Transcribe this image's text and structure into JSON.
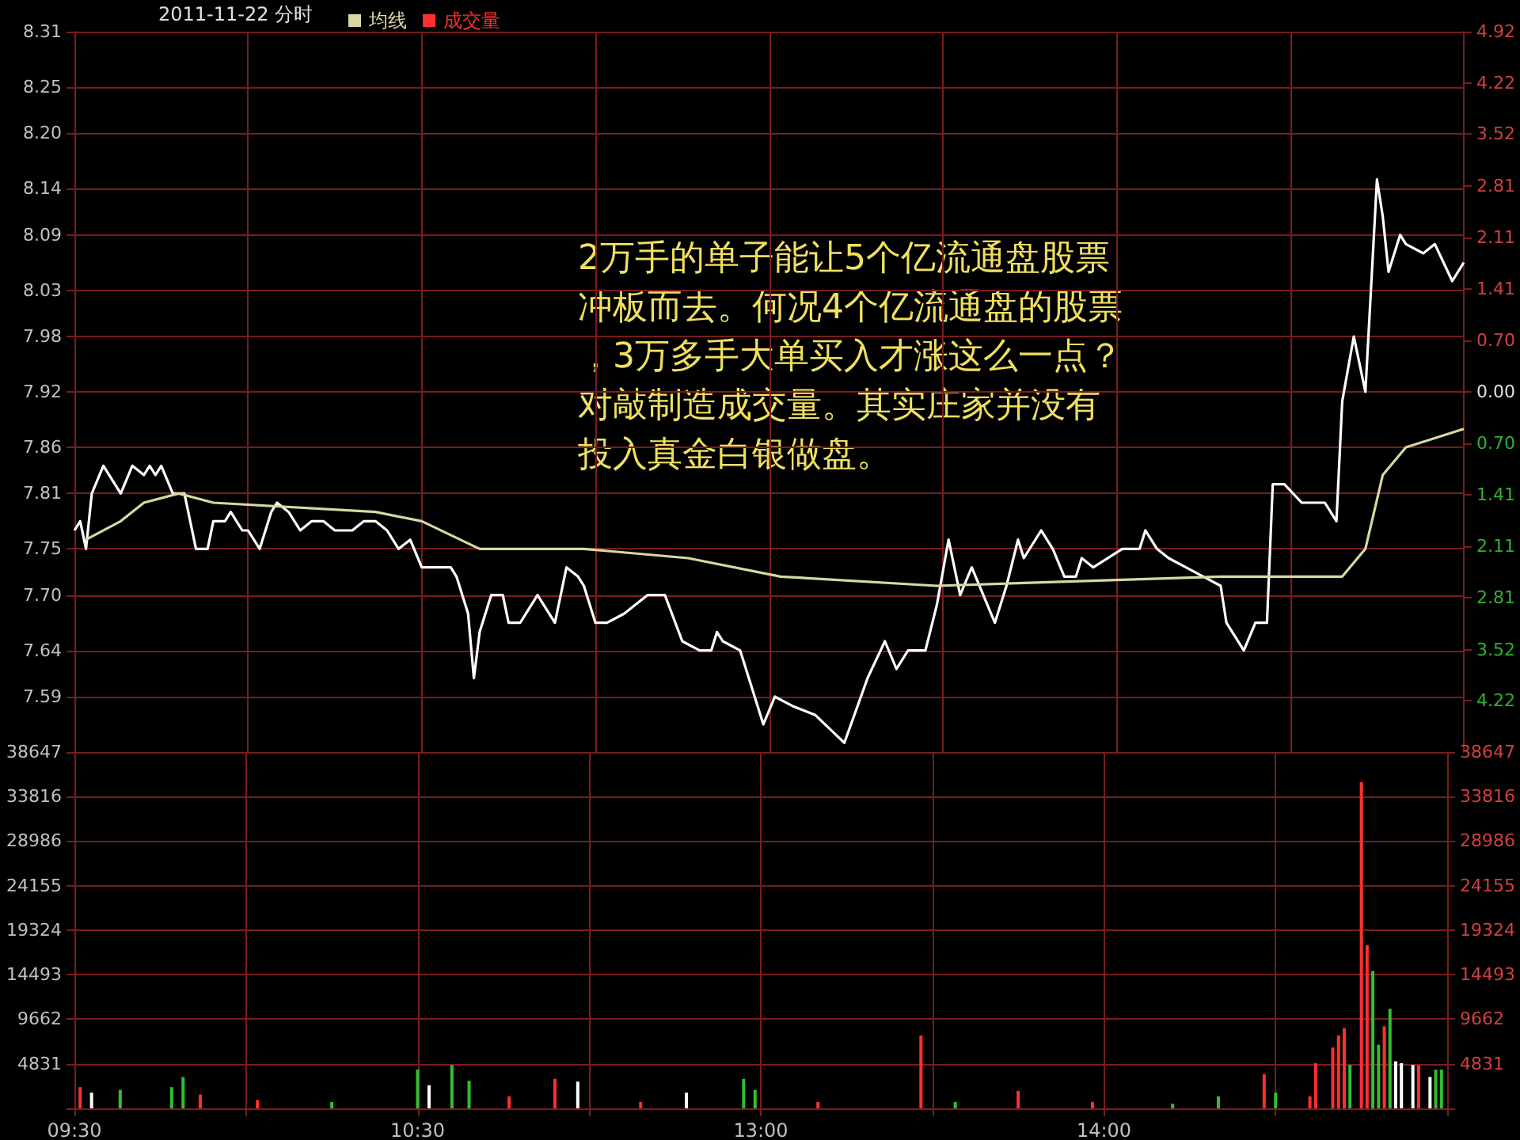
{
  "chart_data": [
    {
      "type": "line",
      "title": "2011-11-22 分时",
      "annotations": [
        "2万手的单子能让5个亿流通盘股票冲板而去。何况4个亿流通盘的股票，3万多手大单买入才涨这么一点？对敲制造成交量。其实庄家并没有投入真金白银做盘。"
      ],
      "categories": [
        null,
        null,
        null,
        null,
        null,
        null,
        null,
        null,
        null,
        null,
        null,
        null,
        null,
        null,
        null,
        null,
        null,
        null,
        null,
        null,
        null,
        null,
        null,
        null,
        null,
        null,
        null,
        null,
        null,
        null,
        null,
        null,
        null,
        null,
        null,
        null,
        null,
        null,
        null,
        null,
        null,
        null,
        null,
        null,
        null,
        null,
        null,
        null,
        null,
        null,
        null,
        null,
        null,
        null,
        null,
        null,
        null,
        null,
        null,
        null,
        null,
        null,
        null,
        null,
        null,
        null,
        null,
        null,
        null,
        null,
        null,
        null,
        null,
        null,
        null,
        null,
        null,
        null,
        null,
        null,
        null,
        null,
        null,
        null,
        null,
        null,
        null,
        null,
        null,
        null,
        null,
        null,
        null,
        null,
        null,
        null,
        null,
        null,
        null,
        null,
        null,
        null,
        null,
        null,
        null,
        null,
        null,
        null,
        null,
        null,
        null,
        null,
        null,
        null,
        null,
        null,
        null,
        null,
        null,
        null,
        null,
        null,
        null,
        null,
        null,
        null,
        null,
        null,
        null,
        null,
        null,
        null,
        null,
        null,
        null,
        null,
        null,
        null,
        null,
        null,
        null,
        null,
        null,
        null,
        null,
        null,
        null,
        null,
        null,
        null,
        null,
        null,
        null,
        null,
        null,
        null,
        null,
        null,
        null,
        null,
        null,
        null,
        null,
        null,
        null,
        null,
        null,
        null,
        null,
        null,
        null,
        null,
        null,
        null,
        null,
        null,
        null,
        null,
        null,
        null,
        null,
        null,
        null,
        null,
        null,
        null,
        null,
        null,
        null,
        null,
        null,
        null,
        null,
        null,
        null,
        null,
        null,
        null,
        null,
        null,
        null,
        null,
        null,
        null,
        null,
        null,
        null,
        null,
        null,
        null,
        null,
        null,
        null,
        null,
        null,
        null,
        null,
        null,
        null,
        null,
        null,
        null,
        null,
        null,
        null,
        null,
        null,
        null,
        null,
        null,
        null,
        null,
        null,
        null,
        null,
        null,
        null,
        null,
        null,
        null,
        null
      ],
      "series": [
        {
          "color": "#ffffff",
          "values": [
            7.77,
            7.78,
            7.75,
            7.81,
            null,
            7.84,
            null,
            null,
            7.81,
            null,
            7.84,
            null,
            7.83,
            7.84,
            7.83,
            7.84,
            null,
            7.81,
            null,
            7.81,
            null,
            7.75,
            null,
            7.75,
            7.78,
            null,
            7.78,
            7.79,
            null,
            7.77,
            7.77,
            null,
            7.75,
            null,
            7.79,
            7.8,
            null,
            7.79,
            null,
            7.77,
            null,
            7.78,
            null,
            7.78,
            null,
            7.77,
            null,
            null,
            7.77,
            null,
            7.78,
            null,
            7.78,
            null,
            7.77,
            null,
            7.75,
            null,
            7.76,
            null,
            7.73,
            null,
            7.73,
            null,
            null,
            7.73,
            7.72,
            null,
            7.68,
            7.61,
            7.66,
            null,
            7.7,
            null,
            7.7,
            7.67,
            null,
            7.67,
            null,
            7.69,
            7.7,
            null,
            null,
            7.67,
            null,
            7.73,
            null,
            7.72,
            7.71,
            null,
            7.67,
            null,
            7.67,
            null,
            null,
            7.68,
            null,
            7.69,
            null,
            7.7,
            null,
            7.7,
            7.7,
            null,
            null,
            7.65,
            null,
            null,
            7.64,
            null,
            7.64,
            7.66,
            7.65,
            null,
            null,
            7.64,
            null,
            7.6,
            null,
            7.56,
            null,
            7.59,
            null,
            null,
            7.58,
            null,
            null,
            null,
            7.57,
            null,
            null,
            null,
            null,
            7.54,
            null,
            null,
            null,
            7.61,
            null,
            null,
            7.65,
            null,
            7.62,
            null,
            7.64,
            null,
            null,
            7.64,
            null,
            7.69,
            null,
            7.76,
            null,
            7.7,
            null,
            7.73,
            null,
            null,
            null,
            7.67,
            null,
            7.71,
            null,
            7.76,
            7.74,
            null,
            null,
            7.77,
            null,
            7.75,
            null,
            7.72,
            null,
            7.72,
            7.74,
            null,
            7.73,
            null,
            null,
            null,
            null,
            7.75,
            null,
            null,
            7.75,
            7.77,
            null,
            7.75,
            null,
            7.74,
            null,
            null,
            7.73,
            null,
            null,
            7.72,
            null,
            null,
            7.71,
            7.67,
            null,
            null,
            7.64,
            null,
            7.67,
            null,
            7.67,
            7.82,
            null,
            7.82,
            null,
            null,
            7.8,
            7.8,
            null,
            7.8,
            7.8,
            null,
            7.78,
            7.91,
            null,
            7.98,
            null,
            7.92,
            null,
            8.15,
            8.11,
            8.05,
            null,
            8.09,
            8.08,
            null,
            null,
            8.07,
            null,
            8.08,
            null,
            null,
            8.04,
            null,
            8.06
          ]
        },
        {
          "name": "均线",
          "color": "#d8d8a0",
          "values": [
            null,
            null,
            7.76,
            null,
            null,
            null,
            null,
            null,
            7.78,
            null,
            null,
            null,
            7.8,
            null,
            null,
            null,
            null,
            null,
            7.81,
            null,
            null,
            null,
            null,
            null,
            7.8,
            null,
            null,
            null,
            null,
            null,
            null,
            null,
            null,
            null,
            null,
            null,
            null,
            null,
            null,
            null,
            null,
            null,
            null,
            null,
            null,
            null,
            null,
            null,
            null,
            null,
            null,
            null,
            7.79,
            null,
            null,
            null,
            null,
            null,
            null,
            null,
            7.78,
            null,
            null,
            null,
            null,
            null,
            null,
            null,
            null,
            null,
            7.75,
            null,
            null,
            null,
            null,
            null,
            null,
            null,
            null,
            null,
            null,
            null,
            null,
            null,
            null,
            null,
            null,
            null,
            7.75,
            null,
            null,
            null,
            null,
            null,
            null,
            null,
            null,
            null,
            null,
            null,
            null,
            null,
            null,
            null,
            null,
            null,
            7.74,
            null,
            null,
            null,
            null,
            null,
            null,
            null,
            null,
            null,
            null,
            null,
            null,
            null,
            null,
            null,
            7.72,
            null,
            null,
            null,
            null,
            null,
            null,
            null,
            null,
            null,
            null,
            null,
            null,
            null,
            null,
            null,
            null,
            null,
            null,
            null,
            null,
            null,
            null,
            null,
            null,
            null,
            null,
            7.71,
            null,
            null,
            null,
            null,
            null,
            null,
            null,
            null,
            null,
            null,
            null,
            null,
            null,
            null,
            null,
            null,
            null,
            null,
            null,
            null,
            null,
            null,
            null,
            null,
            null,
            null,
            null,
            null,
            null,
            null,
            null,
            null,
            null,
            null,
            null,
            null,
            null,
            null,
            null,
            null,
            null,
            null,
            null,
            null,
            null,
            null,
            null,
            null,
            7.72,
            null,
            null,
            null,
            null,
            null,
            null,
            null,
            null,
            null,
            null,
            null,
            null,
            null,
            null,
            null,
            null,
            null,
            null,
            null,
            null,
            7.72,
            null,
            null,
            null,
            7.75,
            null,
            null,
            7.83,
            null,
            null,
            null,
            7.86,
            null,
            null,
            null,
            null,
            null,
            null,
            null,
            null,
            null,
            7.88
          ]
        }
      ],
      "ylim": [
        7.53,
        8.31
      ],
      "yticks": [
        8.31,
        8.25,
        {
          "value": 8.2,
          "label": "8.20"
        },
        8.14,
        8.09,
        8.03,
        7.98,
        7.92,
        7.86,
        7.81,
        7.75,
        {
          "value": 7.7,
          "label": "7.70"
        },
        7.64,
        7.59
      ],
      "y2lim": [
        -4.92,
        4.92
      ],
      "y2ticks": [
        4.92,
        4.22,
        3.52,
        2.81,
        2.11,
        1.41,
        {
          "value": 0.7,
          "label": "0.70"
        },
        {
          "value": 0,
          "label": "0.00"
        },
        {
          "value": -0.7,
          "label": "0.70"
        },
        {
          "value": -1.41,
          "label": "1.41"
        },
        {
          "value": -2.11,
          "label": "2.11"
        },
        {
          "value": -2.81,
          "label": "2.81"
        },
        {
          "value": -3.52,
          "label": "3.52"
        },
        {
          "value": -4.22,
          "label": "4.22"
        }
      ],
      "grid": true,
      "legend": "top left",
      "tick_labels": "y"
    },
    {
      "type": "bar",
      "categories": [
        "09:30",
        null,
        null,
        null,
        null,
        null,
        null,
        null,
        null,
        null,
        null,
        null,
        null,
        null,
        null,
        null,
        null,
        null,
        null,
        null,
        null,
        null,
        null,
        null,
        null,
        null,
        null,
        null,
        null,
        null,
        null,
        null,
        null,
        null,
        null,
        null,
        null,
        null,
        null,
        null,
        null,
        null,
        null,
        null,
        null,
        null,
        null,
        null,
        null,
        null,
        null,
        null,
        null,
        null,
        null,
        null,
        null,
        null,
        null,
        null,
        "10:30",
        null,
        null,
        null,
        null,
        null,
        null,
        null,
        null,
        null,
        null,
        null,
        null,
        null,
        null,
        null,
        null,
        null,
        null,
        null,
        null,
        null,
        null,
        null,
        null,
        null,
        null,
        null,
        null,
        null,
        null,
        null,
        null,
        null,
        null,
        null,
        null,
        null,
        null,
        null,
        null,
        null,
        null,
        null,
        null,
        null,
        null,
        null,
        null,
        null,
        null,
        null,
        null,
        null,
        null,
        null,
        null,
        null,
        null,
        null,
        "13:00",
        null,
        null,
        null,
        null,
        null,
        null,
        null,
        null,
        null,
        null,
        null,
        null,
        null,
        null,
        null,
        null,
        null,
        null,
        null,
        null,
        null,
        null,
        null,
        null,
        null,
        null,
        null,
        null,
        null,
        null,
        null,
        null,
        null,
        null,
        null,
        null,
        null,
        null,
        null,
        null,
        null,
        null,
        null,
        null,
        null,
        null,
        null,
        null,
        null,
        null,
        null,
        null,
        null,
        null,
        null,
        null,
        null,
        null,
        null,
        "14:00",
        null,
        null,
        null,
        null,
        null,
        null,
        null,
        null,
        null,
        null,
        null,
        null,
        null,
        null,
        null,
        null,
        null,
        null,
        null,
        null,
        null,
        null,
        null,
        null,
        null,
        null,
        null,
        null,
        null,
        null,
        null,
        null,
        null,
        null,
        null,
        null,
        null,
        null,
        null,
        null,
        null,
        null,
        null,
        null,
        null,
        null,
        null,
        null,
        null,
        null,
        null,
        null,
        null,
        null,
        null,
        null,
        null,
        null,
        null,
        null
      ],
      "series": [
        {
          "name": "成交量",
          "color": "#ff3030",
          "values": [
            null,
            2300,
            null,
            1700,
            null,
            null,
            null,
            null,
            2000,
            null,
            null,
            null,
            null,
            null,
            null,
            null,
            null,
            2300,
            null,
            3400,
            null,
            null,
            1500,
            null,
            null,
            null,
            null,
            null,
            null,
            null,
            null,
            null,
            900,
            null,
            null,
            null,
            null,
            null,
            null,
            null,
            null,
            null,
            null,
            null,
            null,
            700,
            null,
            null,
            null,
            null,
            null,
            null,
            null,
            null,
            null,
            null,
            null,
            null,
            null,
            null,
            4200,
            null,
            2500,
            null,
            null,
            null,
            4700,
            null,
            null,
            3000,
            null,
            null,
            null,
            null,
            null,
            null,
            1300,
            null,
            null,
            null,
            null,
            null,
            null,
            null,
            3200,
            null,
            null,
            null,
            2900,
            null,
            null,
            null,
            null,
            null,
            null,
            null,
            null,
            null,
            null,
            700,
            null,
            null,
            null,
            null,
            null,
            null,
            null,
            1700,
            null,
            null,
            null,
            null,
            null,
            null,
            null,
            null,
            null,
            3200,
            null,
            2000,
            null,
            null,
            null,
            null,
            null,
            null,
            null,
            null,
            null,
            null,
            700,
            null,
            null,
            null,
            null,
            null,
            null,
            null,
            null,
            null,
            null,
            null,
            null,
            null,
            null,
            null,
            null,
            null,
            7900,
            null,
            null,
            null,
            null,
            null,
            700,
            null,
            null,
            null,
            null,
            null,
            null,
            null,
            null,
            null,
            null,
            1900,
            null,
            null,
            null,
            null,
            null,
            null,
            null,
            null,
            null,
            null,
            null,
            null,
            700,
            null,
            null,
            null,
            null,
            null,
            null,
            null,
            null,
            null,
            null,
            null,
            null,
            null,
            500,
            null,
            null,
            null,
            null,
            null,
            null,
            null,
            1300,
            null,
            null,
            null,
            null,
            null,
            null,
            null,
            3700,
            null,
            1700,
            null,
            null,
            null,
            null,
            null,
            1300,
            4900,
            null,
            null,
            6600,
            7900,
            8700,
            4700,
            null,
            35400,
            17700,
            14900,
            6900,
            8900,
            10800,
            5100,
            4900,
            null,
            4700,
            4700,
            null,
            3400,
            4200,
            4200,
            null
          ],
          "colors": [
            null,
            "#ff3030",
            null,
            "#ffffff",
            null,
            null,
            null,
            null,
            "#30c030",
            null,
            null,
            null,
            null,
            null,
            null,
            null,
            null,
            "#30c030",
            null,
            "#30c030",
            null,
            null,
            "#ff3030",
            null,
            null,
            null,
            null,
            null,
            null,
            null,
            null,
            null,
            "#ff3030",
            null,
            null,
            null,
            null,
            null,
            null,
            null,
            null,
            null,
            null,
            null,
            null,
            "#30c030",
            null,
            null,
            null,
            null,
            null,
            null,
            null,
            null,
            null,
            null,
            null,
            null,
            null,
            null,
            "#30c030",
            null,
            "#ffffff",
            null,
            null,
            null,
            "#30c030",
            null,
            null,
            "#30c030",
            null,
            null,
            null,
            null,
            null,
            null,
            "#ff3030",
            null,
            null,
            null,
            null,
            null,
            null,
            null,
            "#ff3030",
            null,
            null,
            null,
            "#ffffff",
            null,
            null,
            null,
            null,
            null,
            null,
            null,
            null,
            null,
            null,
            "#ff3030",
            null,
            null,
            null,
            null,
            null,
            null,
            null,
            "#ffffff",
            null,
            null,
            null,
            null,
            null,
            null,
            null,
            null,
            null,
            "#30c030",
            null,
            "#30c030",
            null,
            null,
            null,
            null,
            null,
            null,
            null,
            null,
            null,
            null,
            "#ff3030",
            null,
            null,
            null,
            null,
            null,
            null,
            null,
            null,
            null,
            null,
            null,
            null,
            null,
            null,
            null,
            null,
            null,
            "#ff3030",
            null,
            null,
            null,
            null,
            null,
            "#30c030",
            null,
            null,
            null,
            null,
            null,
            null,
            null,
            null,
            null,
            null,
            "#ff3030",
            null,
            null,
            null,
            null,
            null,
            null,
            null,
            null,
            null,
            null,
            null,
            null,
            "#ff3030",
            null,
            null,
            null,
            null,
            null,
            null,
            null,
            null,
            null,
            null,
            null,
            null,
            null,
            "#30c030",
            null,
            null,
            null,
            null,
            null,
            null,
            null,
            "#30c030",
            null,
            null,
            null,
            null,
            null,
            null,
            null,
            "#ff3030",
            null,
            "#30c030",
            null,
            null,
            null,
            null,
            null,
            "#ff3030",
            "#ff3030",
            null,
            null,
            "#ff3030",
            "#ff3030",
            "#ff3030",
            "#30c030",
            null,
            "#ff3030",
            "#ff3030",
            "#30c030",
            "#30c030",
            "#ff3030",
            "#30c030",
            "#ffffff",
            "#ffffff",
            null,
            "#ffffff",
            "#ff3030",
            null,
            "#ffffff",
            "#30c030",
            "#30c030",
            null
          ]
        }
      ],
      "ylim": [
        0,
        38647
      ],
      "yticks": [
        {
          "value": 0,
          "label": null
        },
        4831,
        9662,
        14493,
        19324,
        24155,
        28986,
        33816,
        38647
      ],
      "y2lim": [
        0,
        38647
      ],
      "y2ticks": [
        {
          "value": 0,
          "label": null
        },
        4831,
        9662,
        14493,
        19324,
        24155,
        28986,
        33816,
        38647
      ],
      "grid": true,
      "legend": "top left"
    }
  ]
}
